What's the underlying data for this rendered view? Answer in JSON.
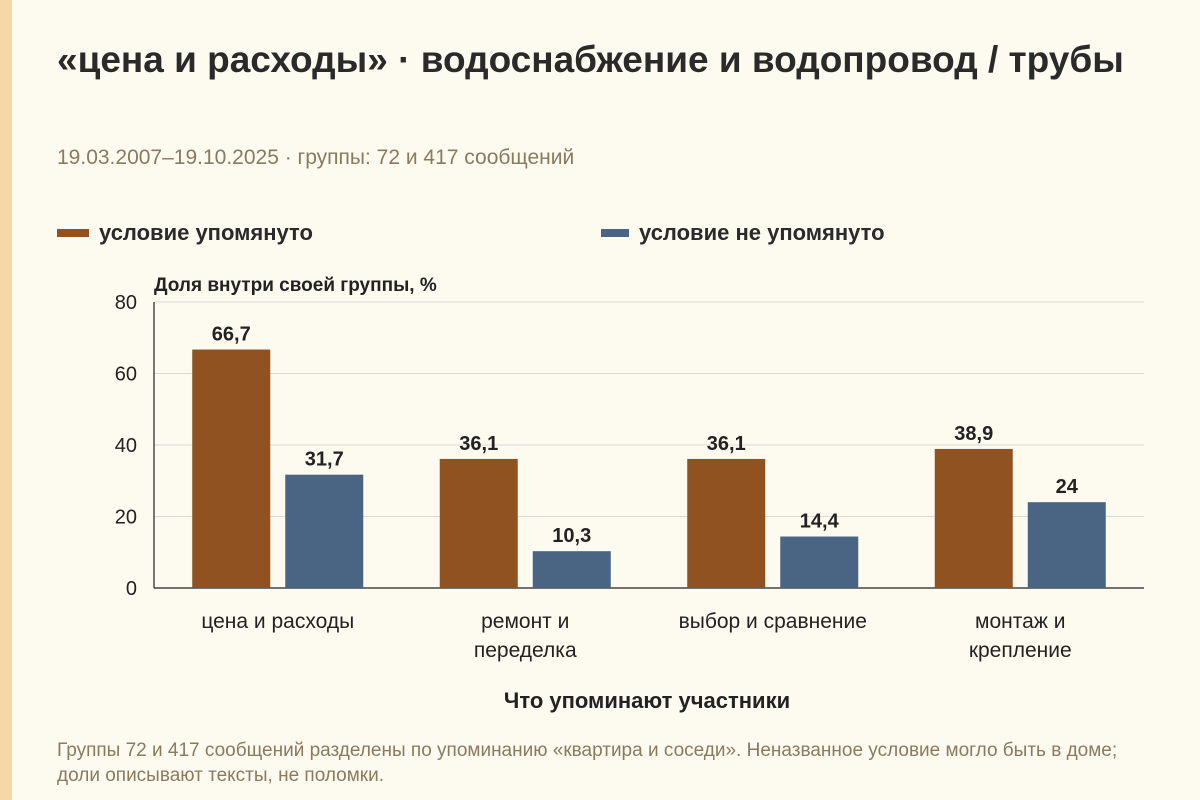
{
  "header": {
    "title": "«цена и расходы» · водоснабжение и водопровод / трубы",
    "subtitle": "19.03.2007–19.10.2025 · группы: 72 и 417 сообщений"
  },
  "legend": {
    "item1": "условие упомянуто",
    "item2": "условие не упомянуто"
  },
  "colors": {
    "mentioned": "#8f5220",
    "not_mentioned": "#4a6584",
    "grid": "#d9d9d9",
    "axis": "#222222"
  },
  "footnote": "Группы 72 и 417 сообщений разделены по упоминанию «квартира и соседи». Неназванное условие могло быть в доме; доли описывают тексты, не поломки.",
  "chart_data": {
    "type": "bar",
    "ylabel": "Доля внутри своей группы, %",
    "xlabel": "Что упоминают участники",
    "ylim": [
      0,
      80
    ],
    "yticks": [
      0,
      20,
      40,
      60,
      80
    ],
    "grid": true,
    "legend_position": "top",
    "categories": [
      [
        "цена и расходы"
      ],
      [
        "ремонт и",
        "переделка"
      ],
      [
        "выбор и сравнение"
      ],
      [
        "монтаж и",
        "крепление"
      ]
    ],
    "series": [
      {
        "name": "условие упомянуто",
        "values": [
          66.7,
          36.1,
          36.1,
          38.9
        ],
        "labels": [
          "66,7",
          "36,1",
          "36,1",
          "38,9"
        ]
      },
      {
        "name": "условие не упомянуто",
        "values": [
          31.7,
          10.3,
          14.4,
          24
        ],
        "labels": [
          "31,7",
          "10,3",
          "14,4",
          "24"
        ]
      }
    ]
  }
}
